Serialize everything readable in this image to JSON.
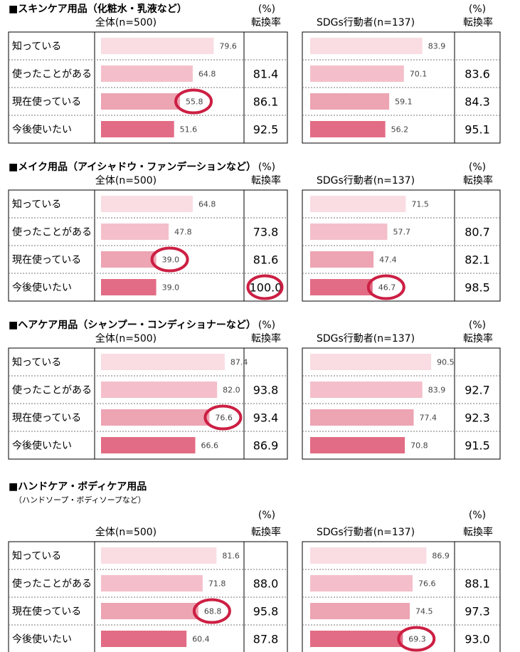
{
  "group_labels": {
    "all": "全体(n=500)",
    "sdgs": "SDGs行動者(n=137)",
    "unit": "(%)",
    "conversion": "転換率"
  },
  "row_labels": [
    "知っている",
    "使ったことがある",
    "現在使っている",
    "今後使いたい"
  ],
  "colors": {
    "bars": [
      "#f9dde3",
      "#f4bfca",
      "#eda4b3",
      "#e26c85"
    ],
    "highlight_ring": "#cc1f43",
    "border": "#000000"
  },
  "chart_data": [
    {
      "type": "bar",
      "orientation": "horizontal",
      "title": "■スキンケア用品（化粧水・乳液など）",
      "subtitle": "",
      "categories": [
        "知っている",
        "使ったことがある",
        "現在使っている",
        "今後使いたい"
      ],
      "xlim": [
        0,
        100
      ],
      "series": [
        {
          "group": "全体(n=500)",
          "values": [
            79.6,
            64.8,
            55.8,
            51.6
          ],
          "conversion": [
            "",
            "81.4",
            "86.1",
            "92.5"
          ],
          "circled_values": [
            2
          ],
          "circled_conversion": []
        },
        {
          "group": "SDGs行動者(n=137)",
          "values": [
            83.9,
            70.1,
            59.1,
            56.2
          ],
          "conversion": [
            "",
            "83.6",
            "84.3",
            "95.1"
          ],
          "circled_values": [],
          "circled_conversion": []
        }
      ]
    },
    {
      "type": "bar",
      "orientation": "horizontal",
      "title": "■メイク用品（アイシャドウ・ファンデーションなど）",
      "subtitle": "",
      "categories": [
        "知っている",
        "使ったことがある",
        "現在使っている",
        "今後使いたい"
      ],
      "xlim": [
        0,
        100
      ],
      "series": [
        {
          "group": "全体(n=500)",
          "values": [
            64.8,
            47.8,
            39.0,
            39.0
          ],
          "conversion": [
            "",
            "73.8",
            "81.6",
            "100.0"
          ],
          "circled_values": [
            2
          ],
          "circled_conversion": [
            3
          ]
        },
        {
          "group": "SDGs行動者(n=137)",
          "values": [
            71.5,
            57.7,
            47.4,
            46.7
          ],
          "conversion": [
            "",
            "80.7",
            "82.1",
            "98.5"
          ],
          "circled_values": [
            3
          ],
          "circled_conversion": []
        }
      ]
    },
    {
      "type": "bar",
      "orientation": "horizontal",
      "title": "■ヘアケア用品（シャンプー・コンディショナーなど）",
      "subtitle": "",
      "categories": [
        "知っている",
        "使ったことがある",
        "現在使っている",
        "今後使いたい"
      ],
      "xlim": [
        0,
        100
      ],
      "series": [
        {
          "group": "全体(n=500)",
          "values": [
            87.4,
            82.0,
            76.6,
            66.6
          ],
          "conversion": [
            "",
            "93.8",
            "93.4",
            "86.9"
          ],
          "circled_values": [
            2
          ],
          "circled_conversion": []
        },
        {
          "group": "SDGs行動者(n=137)",
          "values": [
            90.5,
            83.9,
            77.4,
            70.8
          ],
          "conversion": [
            "",
            "92.7",
            "92.3",
            "91.5"
          ],
          "circled_values": [],
          "circled_conversion": []
        }
      ]
    },
    {
      "type": "bar",
      "orientation": "horizontal",
      "title": "■ハンドケア・ボディケア用品",
      "subtitle": "（ハンドソープ・ボディソープなど）",
      "categories": [
        "知っている",
        "使ったことがある",
        "現在使っている",
        "今後使いたい"
      ],
      "xlim": [
        0,
        100
      ],
      "series": [
        {
          "group": "全体(n=500)",
          "values": [
            81.6,
            71.8,
            68.8,
            60.4
          ],
          "conversion": [
            "",
            "88.0",
            "95.8",
            "87.8"
          ],
          "circled_values": [
            2
          ],
          "circled_conversion": []
        },
        {
          "group": "SDGs行動者(n=137)",
          "values": [
            86.9,
            76.6,
            74.5,
            69.3
          ],
          "conversion": [
            "",
            "88.1",
            "97.3",
            "93.0"
          ],
          "circled_values": [
            3
          ],
          "circled_conversion": []
        }
      ]
    }
  ]
}
